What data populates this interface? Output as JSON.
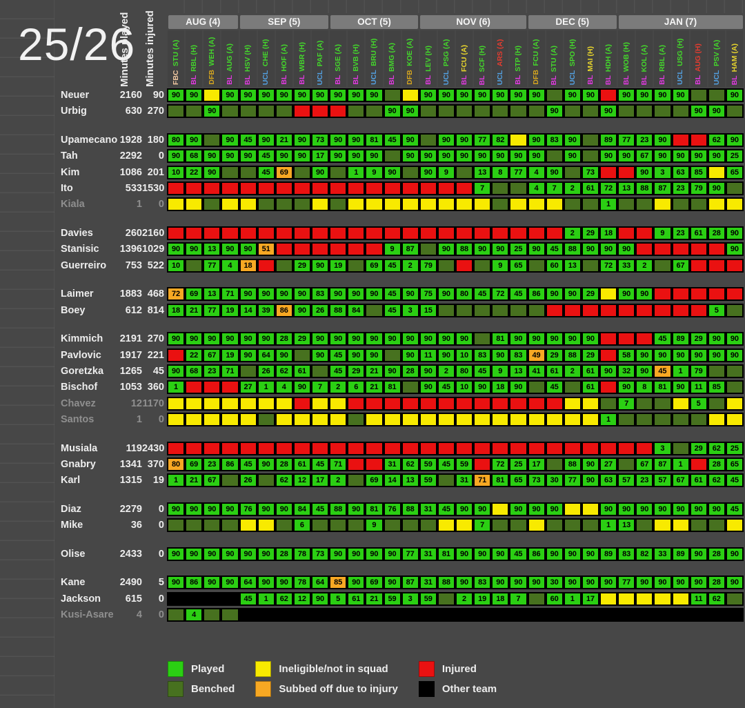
{
  "title": "25/26",
  "axis": {
    "minutes_played": "Minutes played",
    "minutes_injured": "Minutes injured"
  },
  "colors": {
    "played": "#2bcf13",
    "benched": "#47711f",
    "ineligible": "#f8ea00",
    "subbed": "#f7a823",
    "injured": "#ea1111",
    "other": "#000000",
    "compFBC": "#f2c9a2",
    "compBL": "#e23ae2",
    "compDFB": "#d5a51f",
    "compUCL": "#53a0e0",
    "oppG": "#44d62c",
    "oppY": "#e8d52d",
    "oppR": "#e23c30"
  },
  "legend": {
    "columns": [
      {
        "items": [
          {
            "key": "played",
            "label": "Played"
          },
          {
            "key": "benched",
            "label": "Benched"
          }
        ]
      },
      {
        "items": [
          {
            "key": "ineligible",
            "label": "Ineligible/not in squad"
          },
          {
            "key": "subbed",
            "label": "Subbed off due to injury"
          }
        ]
      },
      {
        "items": [
          {
            "key": "injured",
            "label": "Injured"
          },
          {
            "key": "other",
            "label": "Other team"
          }
        ]
      }
    ]
  },
  "chart_data": {
    "type": "heatmap",
    "title": "25/26",
    "cell_encoding": {
      "number": "played, minutes shown (green)",
      "O<number>": "subbed off due to injury at shown minute (orange)",
      "B": "benched (dark green)",
      "Y": "ineligible/not in squad (yellow)",
      "R": "injured (red)",
      "K": "other team (black)"
    },
    "months": [
      {
        "label": "AUG (4)",
        "span": 4
      },
      {
        "label": "SEP (5)",
        "span": 5
      },
      {
        "label": "OCT (5)",
        "span": 5
      },
      {
        "label": "NOV (6)",
        "span": 6
      },
      {
        "label": "DEC (5)",
        "span": 5
      },
      {
        "label": "JAN (7)",
        "span": 7
      }
    ],
    "matches": [
      {
        "comp": "FBC",
        "opp": "STU (A)",
        "res": "g"
      },
      {
        "comp": "BL",
        "opp": "RBL (H)",
        "res": "g"
      },
      {
        "comp": "DFB",
        "opp": "WEH (A)",
        "res": "g"
      },
      {
        "comp": "BL",
        "opp": "AUG (A)",
        "res": "g"
      },
      {
        "comp": "BL",
        "opp": "HSV (H)",
        "res": "g"
      },
      {
        "comp": "UCL",
        "opp": "CHE (H)",
        "res": "g"
      },
      {
        "comp": "BL",
        "opp": "HOF (A)",
        "res": "g"
      },
      {
        "comp": "BL",
        "opp": "WBR (H)",
        "res": "g"
      },
      {
        "comp": "UCL",
        "opp": "PAF (A)",
        "res": "g"
      },
      {
        "comp": "BL",
        "opp": "SGE (A)",
        "res": "g"
      },
      {
        "comp": "BL",
        "opp": "BVB (H)",
        "res": "g"
      },
      {
        "comp": "UCL",
        "opp": "BRU (H)",
        "res": "g"
      },
      {
        "comp": "BL",
        "opp": "BMG (A)",
        "res": "g"
      },
      {
        "comp": "DFB",
        "opp": "KOE (A)",
        "res": "g"
      },
      {
        "comp": "BL",
        "opp": "LEV (H)",
        "res": "g"
      },
      {
        "comp": "UCL",
        "opp": "PSG (A)",
        "res": "g"
      },
      {
        "comp": "BL",
        "opp": "FCU (A)",
        "res": "y"
      },
      {
        "comp": "BL",
        "opp": "SCF (H)",
        "res": "g"
      },
      {
        "comp": "UCL",
        "opp": "ARS (A)",
        "res": "r"
      },
      {
        "comp": "BL",
        "opp": "STP (H)",
        "res": "g"
      },
      {
        "comp": "DFB",
        "opp": "FCU (A)",
        "res": "g"
      },
      {
        "comp": "BL",
        "opp": "STU (A)",
        "res": "g"
      },
      {
        "comp": "UCL",
        "opp": "SPO (H)",
        "res": "g"
      },
      {
        "comp": "BL",
        "opp": "MAI (H)",
        "res": "y"
      },
      {
        "comp": "BL",
        "opp": "HDH (A)",
        "res": "g"
      },
      {
        "comp": "BL",
        "opp": "WOB (H)",
        "res": "g"
      },
      {
        "comp": "BL",
        "opp": "KOL (A)",
        "res": "g"
      },
      {
        "comp": "BL",
        "opp": "RBL (A)",
        "res": "g"
      },
      {
        "comp": "UCL",
        "opp": "USG (H)",
        "res": "g"
      },
      {
        "comp": "BL",
        "opp": "AUG (H)",
        "res": "r"
      },
      {
        "comp": "UCL",
        "opp": "PSV (A)",
        "res": "g"
      },
      {
        "comp": "BL",
        "opp": "HAM (A)",
        "res": "y"
      }
    ],
    "rows": [
      {
        "group": 0,
        "name": "Neuer",
        "minutes_played": 2160,
        "minutes_injured": 90,
        "inactive": false,
        "cells": "90 90 Y 90 90 90 90 90 90 90 90 90 B Y 90 90 90 90 90 90 90 B 90 90 R 90 90 90 90 B B 90"
      },
      {
        "group": 0,
        "name": "Urbig",
        "minutes_played": 630,
        "minutes_injured": 270,
        "inactive": false,
        "cells": "B B 90 B B B B R R R B B 90 90 B B B B B B B 90 B B 90 B B B B 90 90 B"
      },
      {
        "group": 1,
        "name": "Upamecano",
        "minutes_played": 1928,
        "minutes_injured": 180,
        "inactive": false,
        "cells": "80 90 B 90 45 90 21 90 73 90 90 81 45 90 B 90 90 77 82 Y 90 83 90 B 89 77 23 90 R R 62 90"
      },
      {
        "group": 1,
        "name": "Tah",
        "minutes_played": 2292,
        "minutes_injured": 0,
        "inactive": false,
        "cells": "90 68 90 90 90 45 90 90 17 90 90 90 B 90 90 90 90 90 90 90 90 B 90 B 90 90 67 90 90 90 90 25"
      },
      {
        "group": 1,
        "name": "Kim",
        "minutes_played": 1086,
        "minutes_injured": 201,
        "inactive": false,
        "cells": "10 22 90 B B 45 O69 B 90 B 1 9 90 B 90 9 B 13 8 77 4 90 B 73 R R 90 3 63 85 Y 65"
      },
      {
        "group": 1,
        "name": "Ito",
        "minutes_played": 533,
        "minutes_injured": 1530,
        "inactive": false,
        "cells": "R R R R R R R R R R R R R R R R R 7 B B 4 7 2 61 72 13 88 87 23 79 90 B"
      },
      {
        "group": 1,
        "name": "Kiala",
        "minutes_played": 1,
        "minutes_injured": 0,
        "inactive": true,
        "cells": "Y Y B Y Y B B B Y B Y Y Y Y Y Y Y Y B Y Y Y B B 1 B B Y B B Y Y"
      },
      {
        "group": 2,
        "name": "Davies",
        "minutes_played": 260,
        "minutes_injured": 2160,
        "inactive": false,
        "cells": "R R R R R R R R R R R R R R R R R R R R R R 2 29 18 R R 9 23 61 28 90"
      },
      {
        "group": 2,
        "name": "Stanisic",
        "minutes_played": 1396,
        "minutes_injured": 1029,
        "inactive": false,
        "cells": "90 90 13 90 90 O51 R R R R R R 9 87 B 90 88 90 90 25 90 45 88 90 90 90 R R R R R 90"
      },
      {
        "group": 2,
        "name": "Guerreiro",
        "minutes_played": 753,
        "minutes_injured": 522,
        "inactive": false,
        "cells": "10 B 77 4 O18 R B 29 90 19 B 69 45 2 79 B R B 9 65 B 60 13 B 72 33 2 B 67 R R R"
      },
      {
        "group": 3,
        "name": "Laimer",
        "minutes_played": 1883,
        "minutes_injured": 468,
        "inactive": false,
        "cells": "O72 69 13 71 90 90 90 90 83 90 90 90 45 90 75 90 80 45 72 45 86 90 90 29 Y 90 90 R R R R R"
      },
      {
        "group": 3,
        "name": "Boey",
        "minutes_played": 612,
        "minutes_injured": 814,
        "inactive": false,
        "cells": "18 21 77 19 14 39 O86 90 26 88 84 B 45 3 15 B B B B B B R R R R R R R R R 5 B"
      },
      {
        "group": 4,
        "name": "Kimmich",
        "minutes_played": 2191,
        "minutes_injured": 270,
        "inactive": false,
        "cells": "90 90 90 90 90 90 28 29 90 90 90 90 90 90 90 90 90 B 81 90 90 90 90 90 R R R 45 89 29 90 90"
      },
      {
        "group": 4,
        "name": "Pavlovic",
        "minutes_played": 1917,
        "minutes_injured": 221,
        "inactive": false,
        "cells": "R 22 67 19 90 64 90 B 90 45 90 90 B 90 11 90 10 83 90 83 O49 29 88 29 R 58 90 90 90 90 90 90"
      },
      {
        "group": 4,
        "name": "Goretzka",
        "minutes_played": 1265,
        "minutes_injured": 45,
        "inactive": false,
        "cells": "90 68 23 71 B 26 62 61 B 45 29 21 90 28 90 2 80 45 9 13 41 61 2 61 90 32 90 O45 1 79 B B"
      },
      {
        "group": 4,
        "name": "Bischof",
        "minutes_played": 1053,
        "minutes_injured": 360,
        "inactive": false,
        "cells": "1 R R R 27 1 4 90 7 2 6 21 81 B 90 45 10 90 18 90 B 45 B 61 R 90 8 81 90 11 85 B"
      },
      {
        "group": 4,
        "name": "Chavez",
        "minutes_played": 12,
        "minutes_injured": 1170,
        "inactive": true,
        "cells": "Y Y Y Y Y Y Y R Y Y R R R R R R R R R R R R Y Y B 7 B B Y 5 B Y"
      },
      {
        "group": 4,
        "name": "Santos",
        "minutes_played": 1,
        "minutes_injured": 0,
        "inactive": true,
        "cells": "Y Y Y Y Y B Y Y Y Y B Y Y Y Y Y Y Y Y Y Y Y Y Y 1 B B B B B Y Y"
      },
      {
        "group": 5,
        "name": "Musiala",
        "minutes_played": 119,
        "minutes_injured": 2430,
        "inactive": false,
        "cells": "R R R R R R R R R R R R R R R R R R R R R R R R R R R 3 B 29 62 25"
      },
      {
        "group": 5,
        "name": "Gnabry",
        "minutes_played": 1341,
        "minutes_injured": 370,
        "inactive": false,
        "cells": "O80 69 23 86 45 90 28 61 45 71 R R 31 62 59 45 59 R 72 25 17 B 88 90 27 B 67 87 1 R 28 65"
      },
      {
        "group": 5,
        "name": "Karl",
        "minutes_played": 1315,
        "minutes_injured": 19,
        "inactive": false,
        "cells": "1 21 67 B 26 B 62 12 17 2 B 69 14 13 59 B 31 O71 81 65 73 30 77 90 63 57 23 57 67 61 62 45"
      },
      {
        "group": 6,
        "name": "Diaz",
        "minutes_played": 2279,
        "minutes_injured": 0,
        "inactive": false,
        "cells": "90 90 90 90 76 90 90 84 45 88 90 81 76 88 31 45 90 90 Y 90 90 90 Y Y 90 90 90 90 90 90 90 45"
      },
      {
        "group": 6,
        "name": "Mike",
        "minutes_played": 36,
        "minutes_injured": 0,
        "inactive": false,
        "cells": "B B B B Y Y B 6 B B B 9 B B B Y Y 7 B B Y B B B 1 13 B Y Y B B Y"
      },
      {
        "group": 7,
        "name": "Olise",
        "minutes_played": 2433,
        "minutes_injured": 0,
        "inactive": false,
        "cells": "90 90 90 90 90 90 28 78 73 90 90 90 90 77 31 81 90 90 90 45 86 90 90 90 89 83 82 33 89 90 28 90"
      },
      {
        "group": 8,
        "name": "Kane",
        "minutes_played": 2490,
        "minutes_injured": 5,
        "inactive": false,
        "cells": "90 86 90 90 64 90 90 78 64 O85 90 69 90 87 31 88 90 83 90 90 90 30 90 90 90 77 90 90 90 90 28 90"
      },
      {
        "group": 8,
        "name": "Jackson",
        "minutes_played": 615,
        "minutes_injured": 0,
        "inactive": false,
        "cells": "K K K K 45 1 62 12 90 5 61 21 59 3 59 B 2 19 18 7 B 60 1 17 Y Y Y Y Y 11 62 B"
      },
      {
        "group": 8,
        "name": "Kusi-Asare",
        "minutes_played": 4,
        "minutes_injured": 0,
        "inactive": true,
        "cells": "B 4 B B K K K K K K K K K K K K K K K K K K K K K K K K K K K K"
      }
    ]
  }
}
